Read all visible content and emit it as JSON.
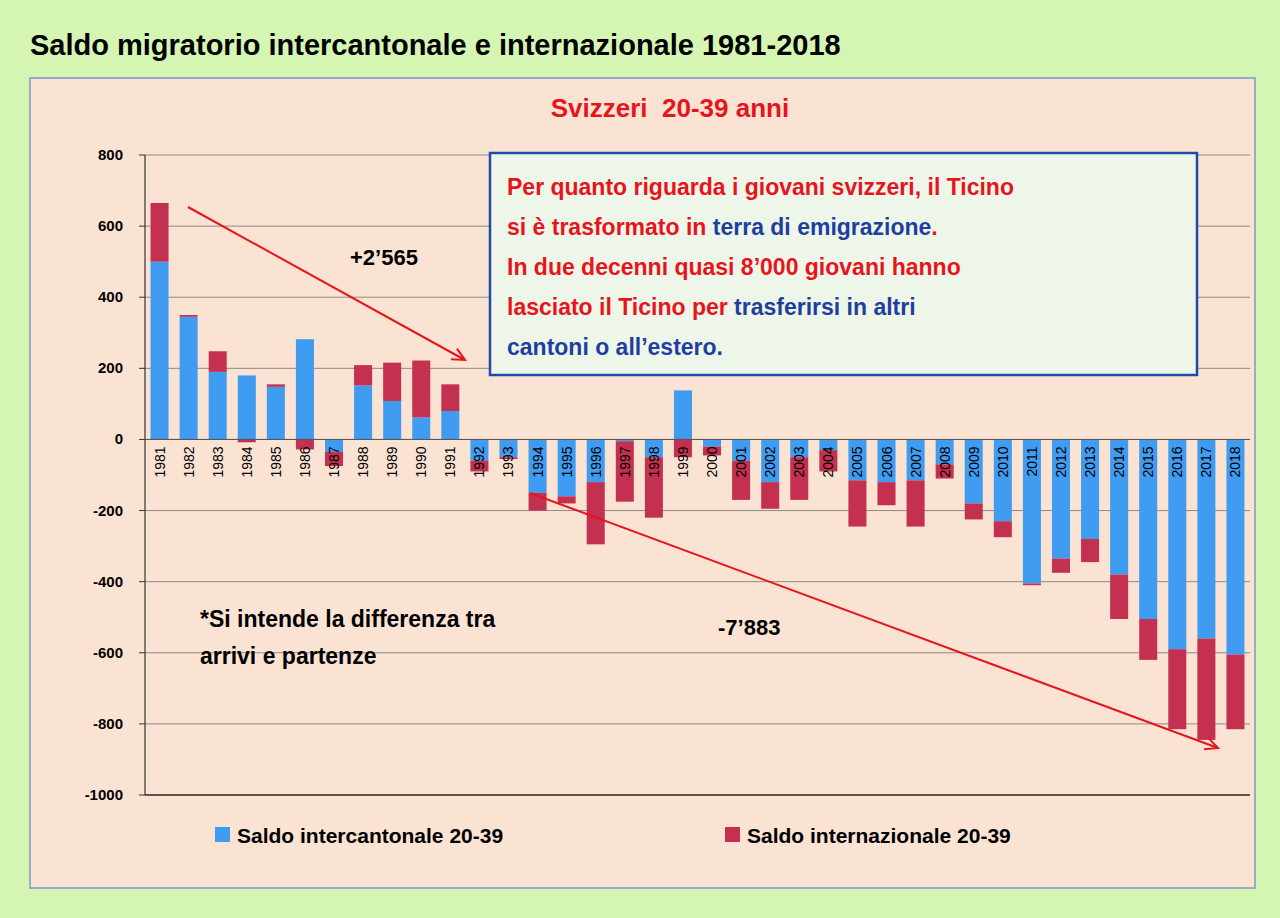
{
  "chart_data": {
    "type": "bar",
    "stacked": true,
    "grid": true,
    "legend": "bottom",
    "title": "Saldo migratorio intercantonale e internazionale 1981-2018",
    "subtitle": "Svizzeri  20-39 anni",
    "categories": [
      "1981",
      "1982",
      "1983",
      "1984",
      "1985",
      "1986",
      "1987",
      "1988",
      "1989",
      "1990",
      "1991",
      "1992",
      "1993",
      "1994",
      "1995",
      "1996",
      "1997",
      "1998",
      "1999",
      "2000",
      "2001",
      "2002",
      "2003",
      "2004",
      "2005",
      "2006",
      "2007",
      "2008",
      "2009",
      "2010",
      "2011",
      "2012",
      "2013",
      "2014",
      "2015",
      "2016",
      "2017",
      "2018"
    ],
    "series": [
      {
        "name": "Saldo intercantonale 20-39",
        "color": "#3f9cf0",
        "values": [
          500,
          345,
          190,
          180,
          148,
          282,
          -35,
          152,
          108,
          62,
          80,
          -60,
          -50,
          -150,
          -160,
          -120,
          -5,
          -50,
          138,
          -20,
          -60,
          -120,
          -50,
          -30,
          -115,
          -120,
          -115,
          -70,
          -180,
          -230,
          -405,
          -335,
          -280,
          -380,
          -505,
          -590,
          -560,
          -605
        ]
      },
      {
        "name": "Saldo internazionale 20-39",
        "color": "#c4304f",
        "values": [
          165,
          5,
          58,
          -8,
          7,
          -28,
          -40,
          57,
          108,
          160,
          75,
          -30,
          -5,
          -50,
          -20,
          -175,
          -170,
          -170,
          -50,
          -25,
          -110,
          -75,
          -120,
          -60,
          -130,
          -65,
          -130,
          -40,
          -45,
          -45,
          -5,
          -40,
          -65,
          -125,
          -115,
          -225,
          -285,
          -210
        ]
      }
    ],
    "ylim": [
      -1000,
      800
    ],
    "yticks": [
      -1000,
      -800,
      -600,
      -400,
      -200,
      0,
      200,
      400,
      600,
      800
    ],
    "annotations": [
      {
        "text": "+2’565"
      },
      {
        "text": "-7’883"
      },
      {
        "lines": [
          "*Si intende la differenza tra",
          "arrivi e partenze"
        ]
      },
      {
        "lines": [
          [
            {
              "text": "Per quanto riguarda i giovani svizzeri, il Ticino",
              "color": "#e8141b"
            }
          ],
          [
            {
              "text": "si è trasformato in ",
              "color": "#e8141b"
            },
            {
              "text": "terra di emigrazione",
              "color": "#1f3fa0"
            },
            {
              "text": ".",
              "color": "#e8141b"
            }
          ],
          [
            {
              "text": "In due decenni quasi 8’000 giovani hanno",
              "color": "#e8141b"
            }
          ],
          [
            {
              "text": "lasciato il Ticino per ",
              "color": "#e8141b"
            },
            {
              "text": "trasferirsi in altri",
              "color": "#1f3fa0"
            }
          ],
          [
            {
              "text": "cantoni o all’estero.",
              "color": "#1f3fa0"
            }
          ]
        ]
      }
    ]
  }
}
